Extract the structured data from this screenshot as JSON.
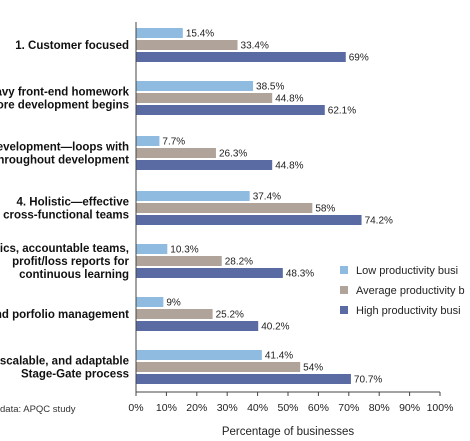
{
  "chart_data": {
    "type": "bar",
    "orientation": "horizontal",
    "categories": [
      [
        "1. Customer focused"
      ],
      [
        "avy front-end homework",
        "ore development begins"
      ],
      [
        "development—loops with",
        "throughout development"
      ],
      [
        "4. Holistic—effective",
        "cross-functional teams"
      ],
      [
        "ics, accountable teams,",
        "profit/loss reports for",
        "continuous learning"
      ],
      [
        "nd porfolio management"
      ],
      [
        "scalable, and adaptable",
        "Stage-Gate process"
      ]
    ],
    "series": [
      {
        "name": "Low productivity busi",
        "color": "#8fbbe0",
        "values": [
          15.4,
          38.5,
          7.7,
          37.4,
          10.3,
          9,
          41.4
        ],
        "labels": [
          "15.4%",
          "38.5%",
          "7.7%",
          "37.4%",
          "10.3%",
          "9%",
          "41.4%"
        ]
      },
      {
        "name": "Average productivity b",
        "color": "#b0a49a",
        "values": [
          33.4,
          44.8,
          26.3,
          58,
          28.2,
          25.2,
          54
        ],
        "labels": [
          "33.4%",
          "44.8%",
          "26.3%",
          "58%",
          "28.2%",
          "25.2%",
          "54%"
        ]
      },
      {
        "name": "High productivity busi",
        "color": "#5a6ba3",
        "values": [
          69,
          62.1,
          44.8,
          74.2,
          48.3,
          40.2,
          70.7
        ],
        "labels": [
          "69%",
          "62.1%",
          "44.8%",
          "74.2%",
          "48.3%",
          "40.2%",
          "70.7%"
        ]
      }
    ],
    "xlim": [
      0,
      100
    ],
    "xticks": [
      "0%",
      "10%",
      "20%",
      "30%",
      "40%",
      "50%",
      "60%",
      "70%",
      "80%",
      "90%",
      "100%"
    ],
    "xlabel": "Percentage of businesses",
    "legend_position": "right",
    "grid": false
  },
  "source_note": "data: APQC study"
}
